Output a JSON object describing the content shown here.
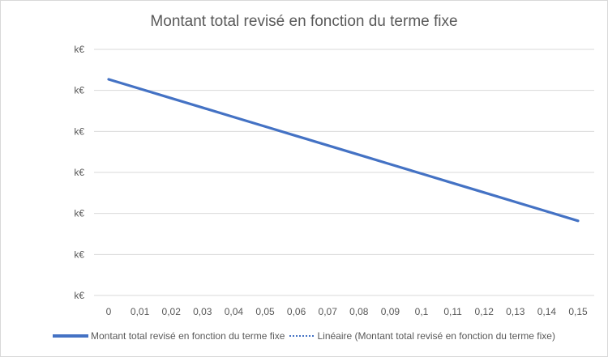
{
  "chart_data": {
    "type": "line",
    "title": "Montant total revisé en fonction du terme fixe",
    "x": [
      "0",
      "0,01",
      "0,02",
      "0,03",
      "0,04",
      "0,05",
      "0,06",
      "0,07",
      "0,08",
      "0,09",
      "0,1",
      "0,11",
      "0,12",
      "0,13",
      "0,14",
      "0,15"
    ],
    "y_tick_labels": [
      "k€",
      "k€",
      "k€",
      "k€",
      "k€",
      "k€",
      "k€"
    ],
    "ylim": [
      0,
      6
    ],
    "grid": true,
    "legend_position": "bottom",
    "series": [
      {
        "name": "Montant total revisé en fonction du terme fixe",
        "style": "solid",
        "color": "#4472c4",
        "values": [
          5.27,
          5.04,
          4.81,
          4.58,
          4.35,
          4.12,
          3.89,
          3.66,
          3.43,
          3.2,
          2.97,
          2.74,
          2.51,
          2.28,
          2.05,
          1.82
        ]
      },
      {
        "name": "Linéaire (Montant total revisé en fonction du terme fixe)",
        "style": "dotted",
        "color": "#4472c4"
      }
    ]
  }
}
